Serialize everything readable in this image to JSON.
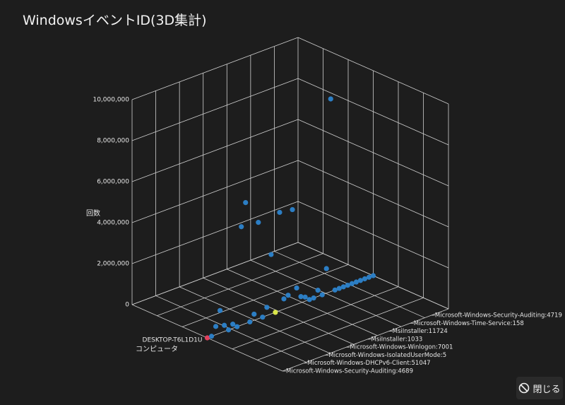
{
  "chart_data": {
    "type": "scatter3d",
    "title": "WindowsイベントID(3D集計)",
    "z_label": "回数",
    "x_label": "コンピュータ",
    "x_categories": [
      "DESKTOP-T6L1D1U"
    ],
    "y_categories": [
      "Microsoft-Windows-Security-Auditing:4689",
      null,
      null,
      null,
      null,
      "Microsoft-Windows-DHCPv6-Client:51047",
      null,
      null,
      null,
      null,
      "Microsoft-Windows-IsolatedUserMode:5",
      null,
      null,
      null,
      null,
      "Microsoft-Windows-Winlogon:7001",
      null,
      null,
      null,
      null,
      "MsiInstaller:1033",
      null,
      null,
      null,
      null,
      "MsiInstaller:11724",
      null,
      null,
      null,
      null,
      "Microsoft-Windows-Time-Service:158",
      null,
      null,
      null,
      null,
      "Microsoft-Windows-Security-Auditing:4719",
      null,
      null,
      null,
      null
    ],
    "values": [
      0,
      0,
      400000,
      1100000,
      300000,
      0,
      200000,
      0,
      4800000,
      5900000,
      0,
      300000,
      4700000,
      0,
      400000,
      2900000,
      0,
      4800000,
      500000,
      600000,
      4700000,
      800000,
      300000,
      200000,
      0,
      0,
      300000,
      0,
      1200000,
      9400000,
      0,
      0,
      0,
      0,
      0,
      0,
      0,
      0,
      0,
      0
    ],
    "point_colors": [
      "#e2405c",
      "#2c7ec4",
      "#2c7ec4",
      "#2c7ec4",
      "#2c7ec4",
      "#2c7ec4",
      "#2c7ec4",
      "#2c7ec4",
      "#2c7ec4",
      "#2c7ec4",
      "#2c7ec4",
      "#2c7ec4",
      "#2c7ec4",
      "#2c7ec4",
      "#2c7ec4",
      "#2c7ec4",
      "#d9e64a",
      "#2c7ec4",
      "#2c7ec4",
      "#2c7ec4",
      "#2c7ec4",
      "#2c7ec4",
      "#2c7ec4",
      "#2c7ec4",
      "#2c7ec4",
      "#2c7ec4",
      "#2c7ec4",
      "#2c7ec4",
      "#2c7ec4",
      "#2c7ec4",
      "#2c7ec4",
      "#2c7ec4",
      "#2c7ec4",
      "#2c7ec4",
      "#2c7ec4",
      "#2c7ec4",
      "#2c7ec4",
      "#2c7ec4",
      "#2c7ec4",
      "#2c7ec4"
    ],
    "zlim": [
      0,
      10000000
    ],
    "zticks": [
      0,
      {
        "value": 2000000,
        "label": "2,000,000"
      },
      {
        "value": 4000000,
        "label": "4,000,000"
      },
      {
        "value": 6000000,
        "label": "6,000,000"
      },
      {
        "value": 8000000,
        "label": "8,000,000"
      },
      {
        "value": 10000000,
        "label": "10,000,000"
      }
    ],
    "grid": true
  },
  "close_label": "閉じる"
}
